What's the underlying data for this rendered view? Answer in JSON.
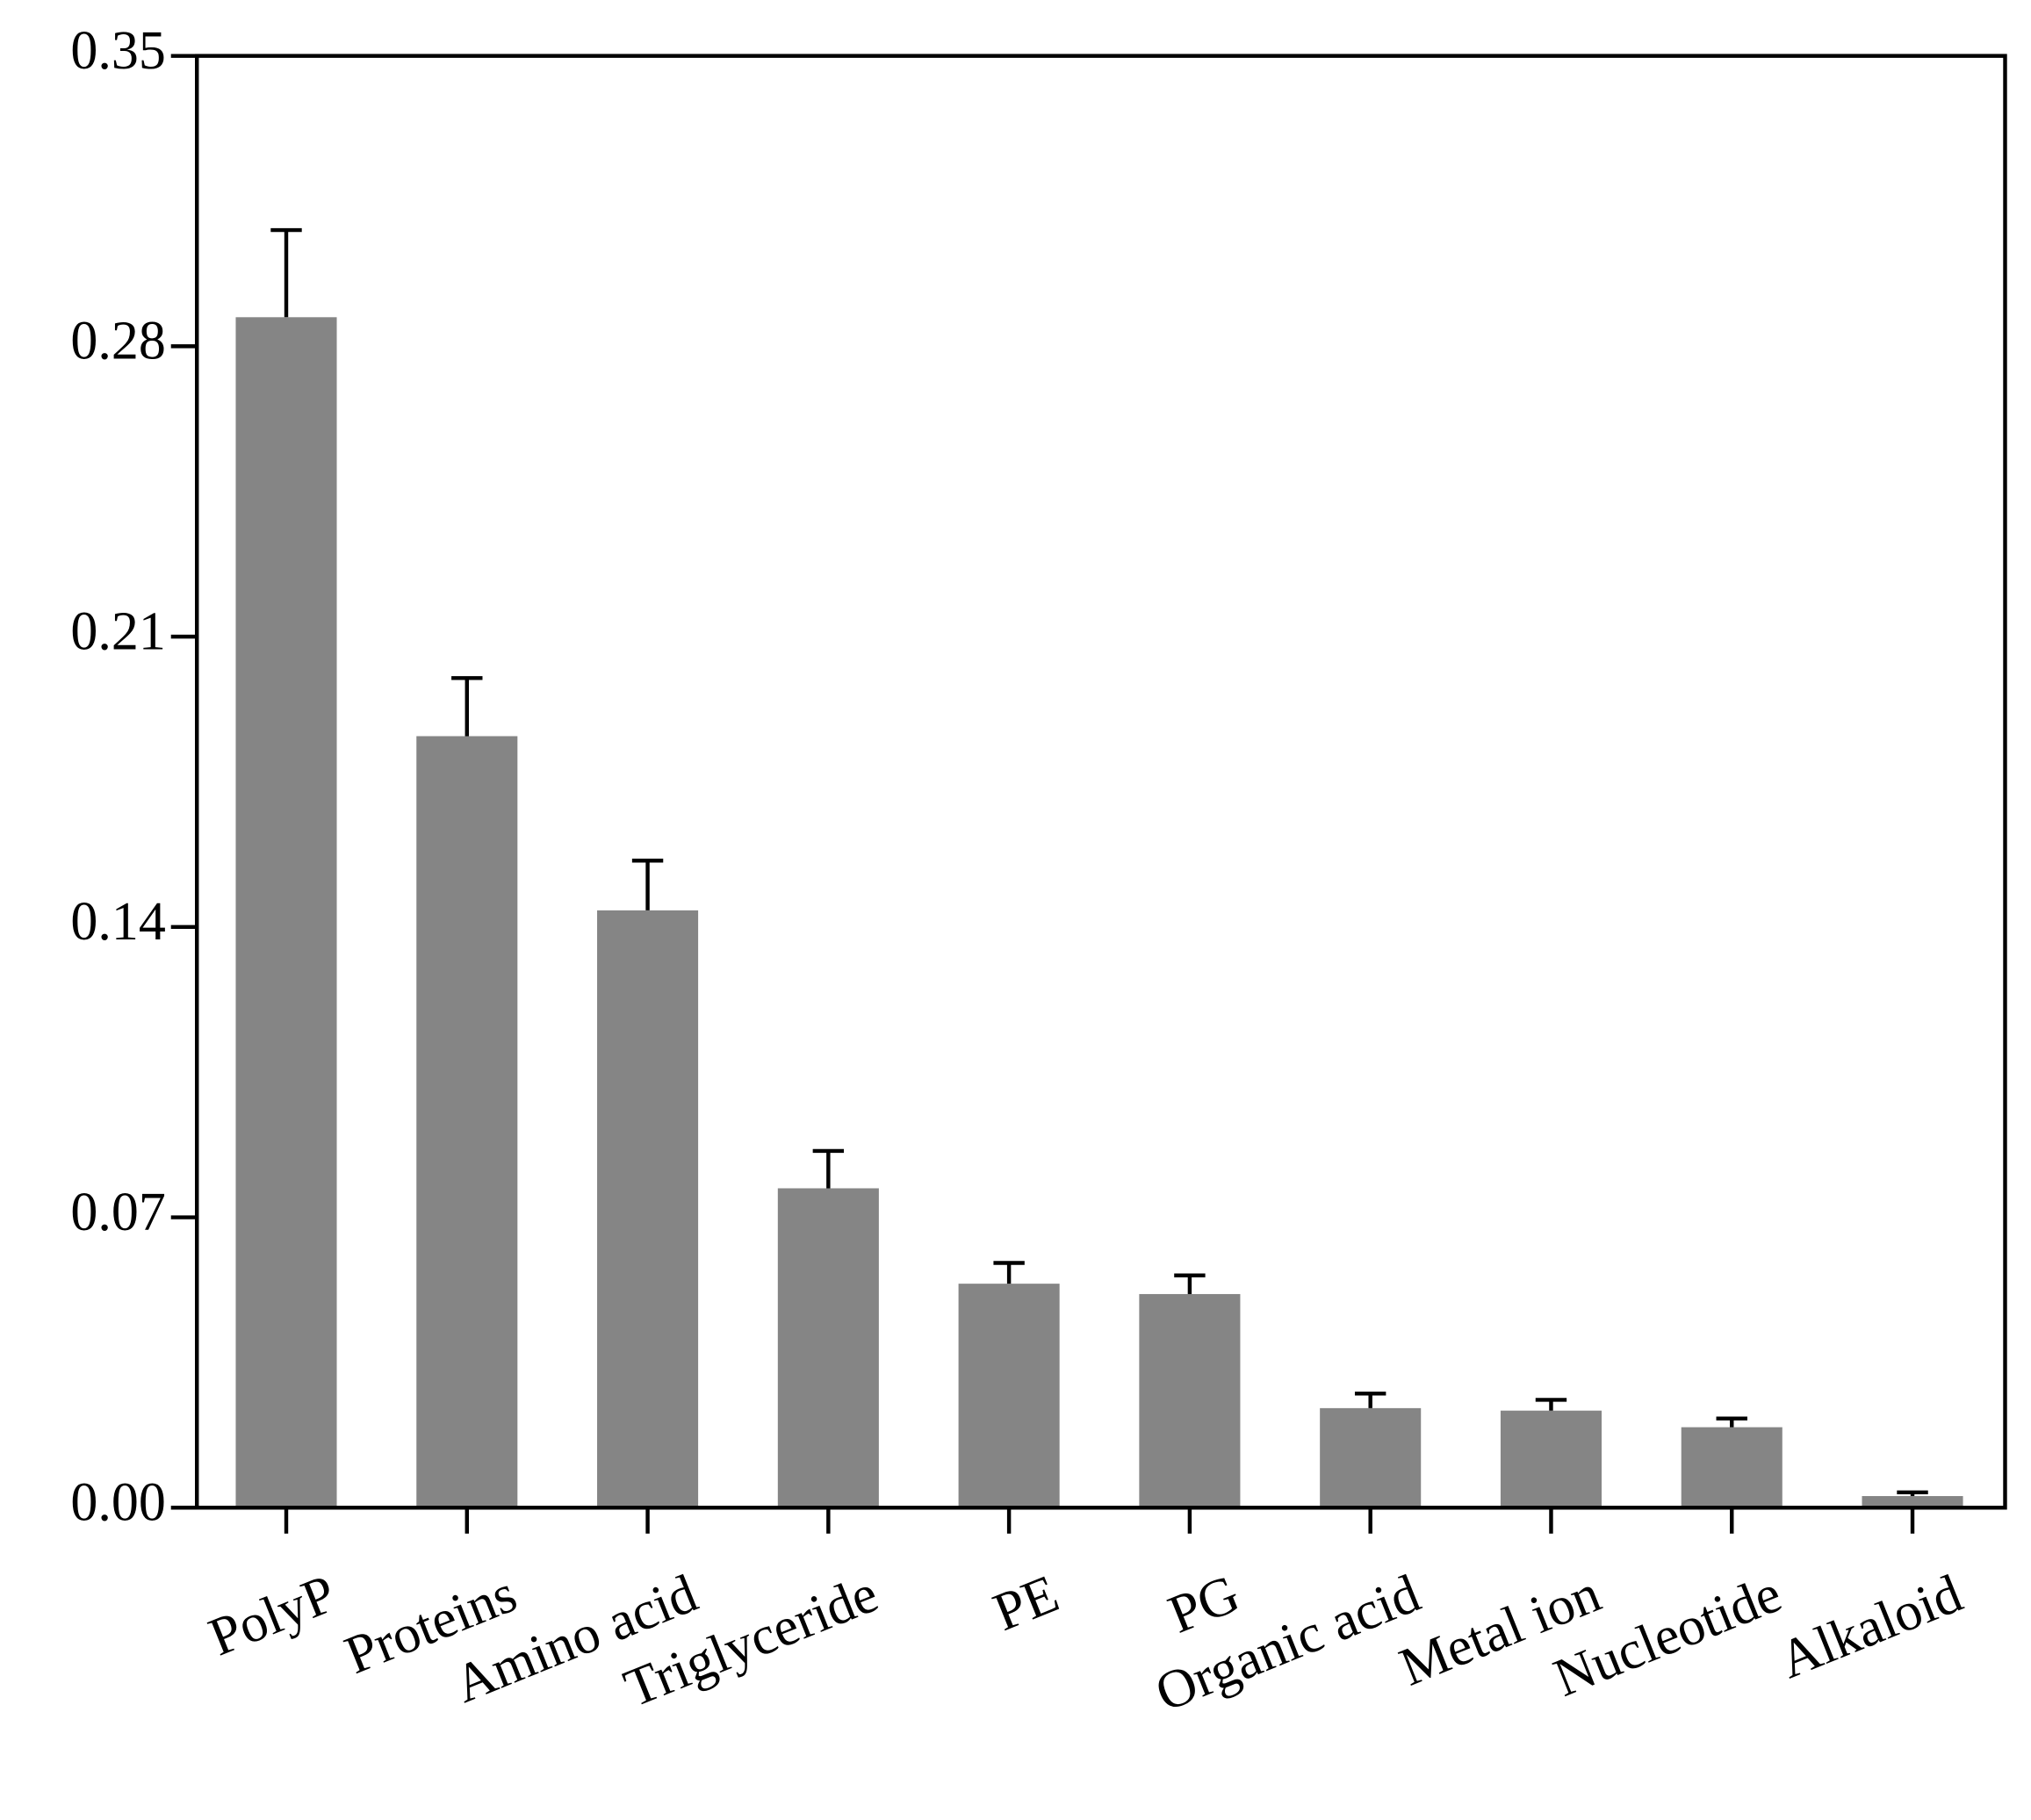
{
  "chart_data": {
    "type": "bar",
    "categories": [
      "PolyP",
      "Proteins",
      "Amino acid",
      "Triglyceride",
      "PE",
      "PG",
      "Organic acid",
      "Metal ion",
      "Nucleotide",
      "Alkaloid"
    ],
    "values": [
      0.287,
      0.186,
      0.144,
      0.077,
      0.054,
      0.0515,
      0.024,
      0.0234,
      0.0194,
      0.0028
    ],
    "errors": [
      0.021,
      0.014,
      0.012,
      0.009,
      0.005,
      0.0045,
      0.0035,
      0.0026,
      0.0021,
      0.0009
    ],
    "color": "#858585",
    "ylim": [
      0,
      0.35
    ],
    "yticks": [
      {
        "value": 0,
        "label": "0.00"
      },
      0.07,
      0.14,
      0.21,
      0.28,
      0.35
    ]
  }
}
